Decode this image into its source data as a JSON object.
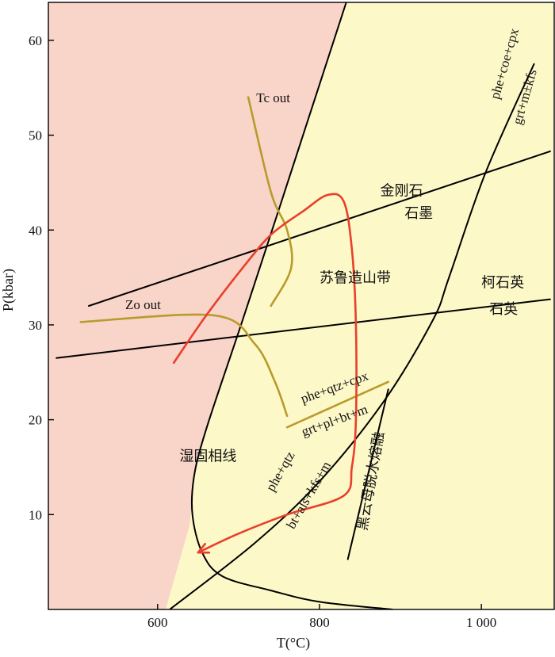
{
  "chart_data": {
    "type": "phase-diagram",
    "xlabel": "T(°C)",
    "ylabel": "P(kbar)",
    "xlim": [
      465,
      1090
    ],
    "ylim": [
      0,
      64
    ],
    "x_ticks": [
      600,
      800,
      1000
    ],
    "x_tick_labels": [
      "600",
      "800",
      "1 000"
    ],
    "y_ticks": [
      10,
      20,
      30,
      40,
      50,
      60
    ],
    "y_tick_labels": [
      "10",
      "20",
      "30",
      "40",
      "50",
      "60"
    ],
    "colors": {
      "field_left": "#f9d4c8",
      "field_right": "#fdf8c8",
      "reaction_black": "#000000",
      "reaction_olive": "#b89b2c",
      "ptt_path": "#e8402a"
    },
    "fields": [
      {
        "id": "left",
        "points": [
          [
            465,
            0
          ],
          [
            465,
            64
          ],
          [
            833,
            64
          ],
          [
            753,
            43
          ],
          [
            703,
            30
          ],
          [
            660,
            19
          ],
          [
            645,
            14
          ],
          [
            640,
            9
          ],
          [
            610,
            0
          ]
        ]
      },
      {
        "id": "right",
        "points": [
          [
            833,
            64
          ],
          [
            1090,
            64
          ],
          [
            1090,
            0
          ],
          [
            610,
            0
          ],
          [
            640,
            9
          ],
          [
            645,
            14
          ],
          [
            660,
            19
          ],
          [
            703,
            30
          ],
          [
            753,
            43
          ]
        ]
      }
    ],
    "lines": [
      {
        "name": "wet-solidus",
        "color": "#000000",
        "points": [
          [
            833,
            64
          ],
          [
            753,
            43
          ],
          [
            703,
            30
          ],
          [
            660,
            19
          ],
          [
            645,
            14
          ],
          [
            643,
            10
          ],
          [
            655,
            6
          ],
          [
            680,
            3.5
          ],
          [
            740,
            2
          ],
          [
            800,
            0.8
          ],
          [
            890,
            0
          ]
        ]
      },
      {
        "name": "diamond-graphite",
        "color": "#000000",
        "points": [
          [
            515,
            32
          ],
          [
            1085,
            48.3
          ]
        ]
      },
      {
        "name": "coesite-quartz",
        "color": "#000000",
        "points": [
          [
            475,
            26.5
          ],
          [
            1085,
            32.7
          ]
        ]
      },
      {
        "name": "phe+coe+cpx",
        "color": "#000000",
        "points": [
          [
            615,
            0
          ],
          [
            720,
            7
          ],
          [
            800,
            13.5
          ],
          [
            880,
            22
          ],
          [
            940,
            30.5
          ],
          [
            960,
            35
          ],
          [
            1005,
            46
          ],
          [
            1065,
            57.5
          ]
        ]
      },
      {
        "name": "biotite-dehydration-melting",
        "color": "#000000",
        "points": [
          [
            835,
            5.3
          ],
          [
            885,
            23.2
          ]
        ]
      },
      {
        "name": "tc-out",
        "color": "#b89b2c",
        "points": [
          [
            712,
            54
          ],
          [
            740,
            44
          ],
          [
            760,
            40
          ],
          [
            765,
            36
          ],
          [
            740,
            32
          ]
        ]
      },
      {
        "name": "zo-out",
        "color": "#b89b2c",
        "points": [
          [
            505,
            30.3
          ],
          [
            670,
            31
          ],
          [
            720,
            28
          ],
          [
            745,
            24
          ],
          [
            760,
            20.4
          ]
        ]
      },
      {
        "name": "phe+qtz+cpx",
        "color": "#b89b2c",
        "points": [
          [
            760,
            19.2
          ],
          [
            885,
            24
          ]
        ]
      },
      {
        "name": "ptt-path",
        "color": "#e8402a",
        "points": [
          [
            620,
            26
          ],
          [
            660,
            31
          ],
          [
            705,
            36
          ],
          [
            740,
            39.5
          ],
          [
            780,
            42
          ],
          [
            810,
            43.7
          ],
          [
            830,
            43
          ],
          [
            840,
            38
          ],
          [
            845,
            30
          ],
          [
            845,
            20
          ],
          [
            840,
            15
          ],
          [
            830,
            12
          ],
          [
            760,
            10
          ],
          [
            700,
            8
          ],
          [
            650,
            6
          ]
        ]
      }
    ],
    "labels": [
      {
        "text": "Tc out",
        "x": 722,
        "y": 53.8,
        "rotate": 0
      },
      {
        "text": "Zo out",
        "x": 560,
        "y": 32,
        "rotate": 0
      },
      {
        "text": "金刚石",
        "x": 875,
        "y": 44,
        "rotate": 0
      },
      {
        "text": "石墨",
        "x": 905,
        "y": 41.6,
        "rotate": 0
      },
      {
        "text": "柯石英",
        "x": 1000,
        "y": 34.3,
        "rotate": 0
      },
      {
        "text": "石英",
        "x": 1010,
        "y": 31.5,
        "rotate": 0
      },
      {
        "text": "苏鲁造山带",
        "x": 800,
        "y": 34.8,
        "rotate": 0
      },
      {
        "text": "湿固相线",
        "x": 627,
        "y": 16,
        "rotate": 0
      },
      {
        "text": "phe+coe+cpx",
        "x": 1030,
        "y": 57.5,
        "rotate": -74
      },
      {
        "text": "grt+m±kfs",
        "x": 1055,
        "y": 54,
        "rotate": -74
      },
      {
        "text": "phe+qtz+cpx",
        "x": 819,
        "y": 23.3,
        "rotate": -20
      },
      {
        "text": "grt+pl+bt+m",
        "x": 819,
        "y": 19.8,
        "rotate": -20
      },
      {
        "text": "phe+qtz",
        "x": 753,
        "y": 14.5,
        "rotate": -60
      },
      {
        "text": "bt+als+kfs+m",
        "x": 788,
        "y": 12,
        "rotate": -60
      },
      {
        "text": "黑云母脱水熔融",
        "x": 865,
        "y": 13.5,
        "rotate": -80
      }
    ]
  }
}
